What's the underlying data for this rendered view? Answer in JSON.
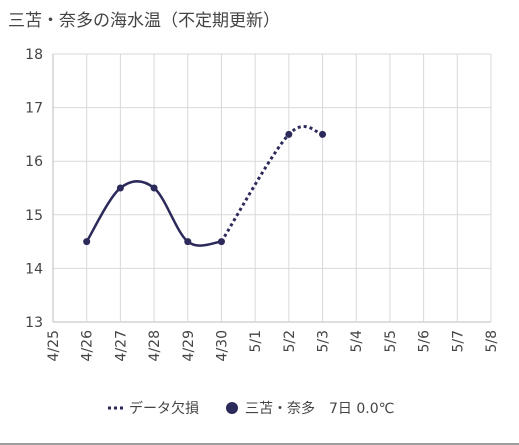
{
  "chart_data": {
    "type": "line",
    "title": "三苫・奈多の海水温（不定期更新）",
    "categories": [
      "4/25",
      "4/26",
      "4/27",
      "4/28",
      "4/29",
      "4/30",
      "5/1",
      "5/2",
      "5/3",
      "5/4",
      "5/5",
      "5/6",
      "5/7",
      "5/8"
    ],
    "series": [
      {
        "name": "三苫・奈多　7日 0.0℃",
        "color": "#2c2a5a",
        "style": "solid-smooth",
        "points": [
          {
            "x": "4/26",
            "y": 14.5
          },
          {
            "x": "4/27",
            "y": 15.5
          },
          {
            "x": "4/28",
            "y": 15.5
          },
          {
            "x": "4/29",
            "y": 14.5
          },
          {
            "x": "4/30",
            "y": 14.5
          }
        ]
      },
      {
        "name": "データ欠損",
        "color": "#2c2a5a",
        "style": "dotted",
        "points": [
          {
            "x": "4/30",
            "y": 14.5
          },
          {
            "x": "5/2",
            "y": 16.5
          },
          {
            "x": "5/3",
            "y": 16.5
          }
        ]
      }
    ],
    "markers": [
      {
        "x": "4/26",
        "y": 14.5
      },
      {
        "x": "4/27",
        "y": 15.5
      },
      {
        "x": "4/28",
        "y": 15.5
      },
      {
        "x": "4/29",
        "y": 14.5
      },
      {
        "x": "4/30",
        "y": 14.5
      },
      {
        "x": "5/2",
        "y": 16.5
      },
      {
        "x": "5/3",
        "y": 16.5
      }
    ],
    "ylim": [
      13,
      18
    ],
    "yticks": [
      13,
      14,
      15,
      16,
      17,
      18
    ],
    "grid": true,
    "legend": {
      "placement": "bottom-center",
      "items": [
        {
          "label": "データ欠損",
          "symbol": "dotted-line"
        },
        {
          "label": "三苫・奈多　7日 0.0℃",
          "symbol": "circle"
        }
      ]
    },
    "colors": {
      "line": "#2c2a5a",
      "grid": "#d9d9d9",
      "axis": "#bdbdbd",
      "text": "#444444"
    }
  }
}
